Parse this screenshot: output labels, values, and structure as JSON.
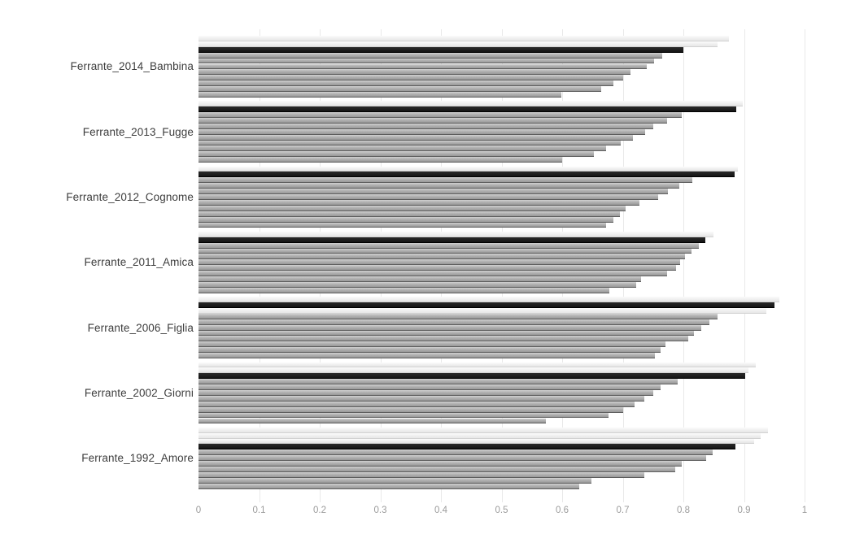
{
  "page": {
    "background_color": "#ffffff"
  },
  "chart_data": {
    "type": "bar",
    "orientation": "horizontal",
    "title": "",
    "subtitle": "",
    "xlabel": "",
    "ylabel": "",
    "xlim": [
      0,
      1
    ],
    "x_ticks": [
      "0",
      "0.1",
      "0.2",
      "0.3",
      "0.4",
      "0.5",
      "0.6",
      "0.7",
      "0.8",
      "0.9",
      "1"
    ],
    "grid": "faint-vertical-gridlines-every-0.1",
    "legend": "none",
    "bars_per_group": 11,
    "bar_sort": "descending-within-group",
    "colors": {
      "highlight_bar": "#1a1a1a",
      "default_bar": "#a6a6a6",
      "pale_bar": "#ededed",
      "category_label": "#3d3d3d",
      "tick_label": "#9b9b9b",
      "gridline": "#e9e9e9"
    },
    "groups": [
      {
        "label": "Ferrante_2014_Bambina",
        "bars": [
          {
            "value": 0.875,
            "tone": "light"
          },
          {
            "value": 0.857,
            "tone": "light"
          },
          {
            "value": 0.8,
            "tone": "black"
          },
          {
            "value": 0.765,
            "tone": "gray"
          },
          {
            "value": 0.752,
            "tone": "gray"
          },
          {
            "value": 0.74,
            "tone": "gray"
          },
          {
            "value": 0.713,
            "tone": "gray"
          },
          {
            "value": 0.7,
            "tone": "gray"
          },
          {
            "value": 0.685,
            "tone": "gray"
          },
          {
            "value": 0.665,
            "tone": "gray"
          },
          {
            "value": 0.598,
            "tone": "gray"
          }
        ]
      },
      {
        "label": "Ferrante_2013_Fugge",
        "bars": [
          {
            "value": 0.898,
            "tone": "light"
          },
          {
            "value": 0.887,
            "tone": "black"
          },
          {
            "value": 0.797,
            "tone": "gray"
          },
          {
            "value": 0.773,
            "tone": "gray"
          },
          {
            "value": 0.75,
            "tone": "gray"
          },
          {
            "value": 0.737,
            "tone": "gray"
          },
          {
            "value": 0.717,
            "tone": "gray"
          },
          {
            "value": 0.697,
            "tone": "gray"
          },
          {
            "value": 0.673,
            "tone": "gray"
          },
          {
            "value": 0.652,
            "tone": "gray"
          },
          {
            "value": 0.6,
            "tone": "gray"
          }
        ]
      },
      {
        "label": "Ferrante_2012_Cognome",
        "bars": [
          {
            "value": 0.89,
            "tone": "light"
          },
          {
            "value": 0.885,
            "tone": "black"
          },
          {
            "value": 0.815,
            "tone": "gray"
          },
          {
            "value": 0.793,
            "tone": "gray"
          },
          {
            "value": 0.775,
            "tone": "gray"
          },
          {
            "value": 0.758,
            "tone": "gray"
          },
          {
            "value": 0.728,
            "tone": "gray"
          },
          {
            "value": 0.705,
            "tone": "gray"
          },
          {
            "value": 0.695,
            "tone": "gray"
          },
          {
            "value": 0.685,
            "tone": "gray"
          },
          {
            "value": 0.673,
            "tone": "gray"
          }
        ]
      },
      {
        "label": "Ferrante_2011_Amica",
        "bars": [
          {
            "value": 0.85,
            "tone": "light"
          },
          {
            "value": 0.836,
            "tone": "black"
          },
          {
            "value": 0.825,
            "tone": "gray"
          },
          {
            "value": 0.813,
            "tone": "gray"
          },
          {
            "value": 0.803,
            "tone": "gray"
          },
          {
            "value": 0.795,
            "tone": "gray"
          },
          {
            "value": 0.788,
            "tone": "gray"
          },
          {
            "value": 0.773,
            "tone": "gray"
          },
          {
            "value": 0.73,
            "tone": "gray"
          },
          {
            "value": 0.722,
            "tone": "gray"
          },
          {
            "value": 0.678,
            "tone": "gray"
          }
        ]
      },
      {
        "label": "Ferrante_2006_Figlia",
        "bars": [
          {
            "value": 0.958,
            "tone": "light"
          },
          {
            "value": 0.951,
            "tone": "black"
          },
          {
            "value": 0.937,
            "tone": "light"
          },
          {
            "value": 0.857,
            "tone": "gray"
          },
          {
            "value": 0.843,
            "tone": "gray"
          },
          {
            "value": 0.83,
            "tone": "gray"
          },
          {
            "value": 0.818,
            "tone": "gray"
          },
          {
            "value": 0.808,
            "tone": "gray"
          },
          {
            "value": 0.77,
            "tone": "gray"
          },
          {
            "value": 0.762,
            "tone": "gray"
          },
          {
            "value": 0.753,
            "tone": "gray"
          }
        ]
      },
      {
        "label": "Ferrante_2002_Giorni",
        "bars": [
          {
            "value": 0.92,
            "tone": "light"
          },
          {
            "value": 0.908,
            "tone": "light"
          },
          {
            "value": 0.902,
            "tone": "black"
          },
          {
            "value": 0.79,
            "tone": "gray"
          },
          {
            "value": 0.763,
            "tone": "gray"
          },
          {
            "value": 0.75,
            "tone": "gray"
          },
          {
            "value": 0.735,
            "tone": "gray"
          },
          {
            "value": 0.72,
            "tone": "gray"
          },
          {
            "value": 0.7,
            "tone": "gray"
          },
          {
            "value": 0.677,
            "tone": "gray"
          },
          {
            "value": 0.573,
            "tone": "gray"
          }
        ]
      },
      {
        "label": "Ferrante_1992_Amore",
        "bars": [
          {
            "value": 0.94,
            "tone": "light"
          },
          {
            "value": 0.928,
            "tone": "light"
          },
          {
            "value": 0.917,
            "tone": "light"
          },
          {
            "value": 0.886,
            "tone": "black"
          },
          {
            "value": 0.848,
            "tone": "gray"
          },
          {
            "value": 0.838,
            "tone": "gray"
          },
          {
            "value": 0.797,
            "tone": "gray"
          },
          {
            "value": 0.787,
            "tone": "gray"
          },
          {
            "value": 0.736,
            "tone": "gray"
          },
          {
            "value": 0.648,
            "tone": "gray"
          },
          {
            "value": 0.628,
            "tone": "gray"
          }
        ]
      }
    ]
  }
}
